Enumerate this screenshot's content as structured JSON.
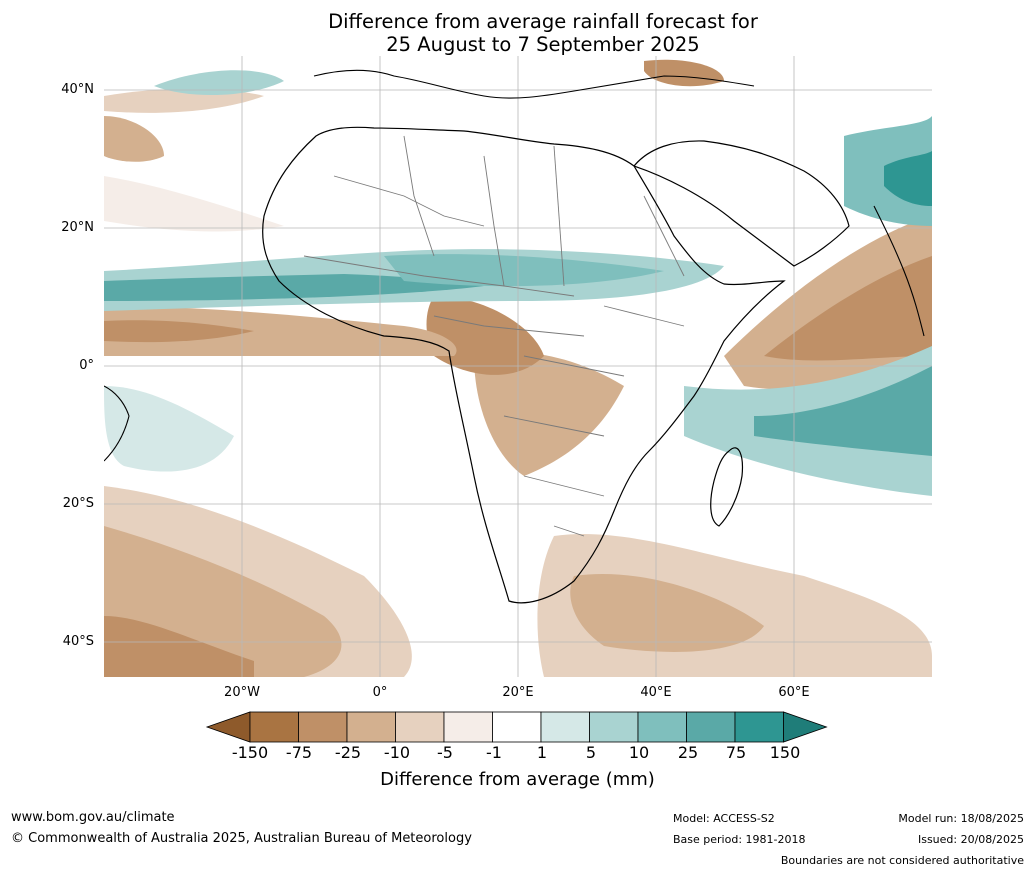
{
  "title": {
    "line1": "Difference from average rainfall forecast for",
    "line2": "25 August to 7 September 2025"
  },
  "map": {
    "lat_labels": [
      "40°N",
      "20°N",
      "0°",
      "20°S",
      "40°S"
    ],
    "lon_labels": [
      "20°W",
      "0°",
      "20°E",
      "40°E",
      "60°E"
    ]
  },
  "colorbar": {
    "ticks": [
      "-150",
      "-75",
      "-25",
      "-10",
      "-5",
      "-1",
      "1",
      "5",
      "10",
      "25",
      "75",
      "150"
    ],
    "colors": [
      "#8e5a2b",
      "#a97442",
      "#bf9067",
      "#d3b08f",
      "#e6d1bf",
      "#f5ede8",
      "#ffffff",
      "#d5e8e7",
      "#a9d3d1",
      "#7fbfbd",
      "#5aa9a7",
      "#2e9692",
      "#1f7d79"
    ],
    "label": "Difference from average (mm)"
  },
  "footer": {
    "website": "www.bom.gov.au/climate",
    "copyright": "© Commonwealth of Australia 2025, Australian Bureau of Meteorology",
    "model": "Model: ACCESS-S2",
    "base_period": "Base period: 1981-2018",
    "model_run": "Model run: 18/08/2025",
    "issued": "Issued: 20/08/2025",
    "disclaimer": "Boundaries are not considered authoritative"
  }
}
